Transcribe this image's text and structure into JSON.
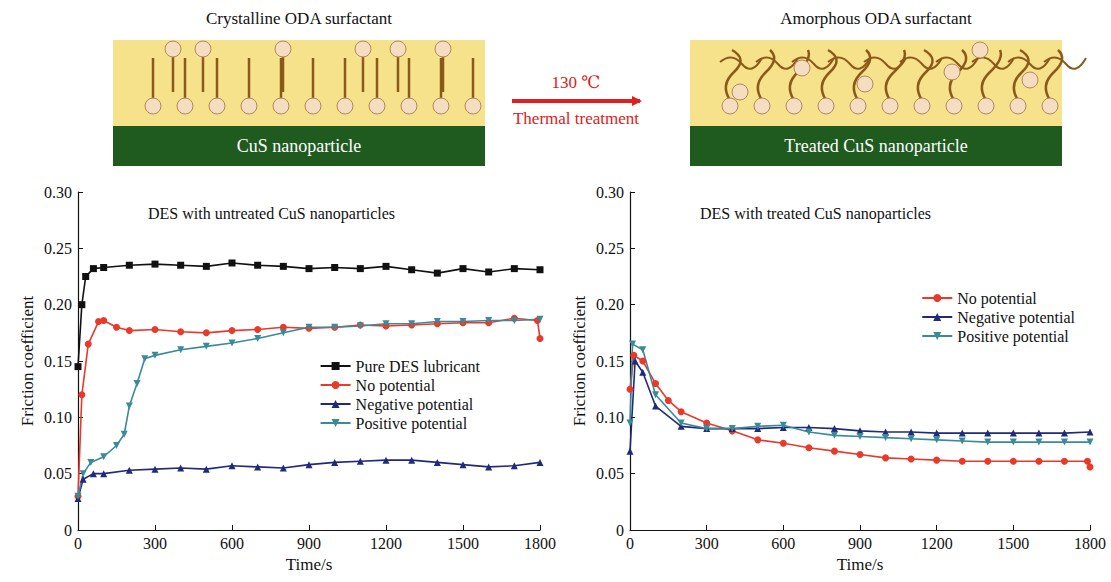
{
  "schematic": {
    "left": {
      "title": "Crystalline ODA surfactant",
      "base": "CuS nanoparticle"
    },
    "arrow": {
      "top": "130 ℃",
      "bottom": "Thermal treatment"
    },
    "right": {
      "title": "Amorphous ODA surfactant",
      "base": "Treated CuS nanoparticle"
    }
  },
  "chart_data": [
    {
      "type": "line",
      "title": "DES with untreated CuS nanoparticles",
      "x_label": "Time/s",
      "y_label": "Friction coefficient",
      "xlim": [
        0,
        1800
      ],
      "xticks": [
        0,
        300,
        600,
        900,
        1200,
        1500,
        1800
      ],
      "ylim": [
        0,
        0.3
      ],
      "yticks": [
        0,
        0.05,
        {
          "value": 0.1,
          "label": "0.10"
        },
        0.15,
        {
          "value": 0.2,
          "label": "0.20"
        },
        0.25,
        {
          "value": 0.3,
          "label": "0.30"
        }
      ],
      "grid": false,
      "legend": "center right",
      "series": [
        {
          "name": "Pure DES lubricant",
          "color": "#111111",
          "marker": "square",
          "x": [
            0,
            15,
            30,
            60,
            100,
            200,
            300,
            400,
            500,
            600,
            700,
            800,
            900,
            1000,
            1100,
            1200,
            1300,
            1400,
            1500,
            1600,
            1700,
            1800
          ],
          "values": [
            0.145,
            0.2,
            0.225,
            0.232,
            0.233,
            0.235,
            0.236,
            0.235,
            0.234,
            0.237,
            0.235,
            0.234,
            0.232,
            0.233,
            0.232,
            0.234,
            0.231,
            0.228,
            0.232,
            0.229,
            0.232,
            0.231
          ]
        },
        {
          "name": "No potential",
          "color": "#e8392b",
          "marker": "circle",
          "x": [
            0,
            15,
            40,
            80,
            100,
            150,
            200,
            300,
            400,
            500,
            600,
            700,
            800,
            900,
            1000,
            1100,
            1200,
            1300,
            1400,
            1500,
            1600,
            1700,
            1790,
            1800
          ],
          "values": [
            0.03,
            0.12,
            0.165,
            0.185,
            0.186,
            0.18,
            0.177,
            0.178,
            0.176,
            0.175,
            0.177,
            0.178,
            0.18,
            0.179,
            0.18,
            0.182,
            0.181,
            0.182,
            0.183,
            0.184,
            0.184,
            0.188,
            0.186,
            0.17
          ]
        },
        {
          "name": "Negative potential",
          "color": "#1f2a7a",
          "marker": "triangle",
          "x": [
            0,
            20,
            60,
            100,
            200,
            300,
            400,
            500,
            600,
            700,
            800,
            900,
            1000,
            1100,
            1200,
            1300,
            1400,
            1500,
            1600,
            1700,
            1800
          ],
          "values": [
            0.028,
            0.045,
            0.05,
            0.05,
            0.053,
            0.054,
            0.055,
            0.054,
            0.057,
            0.056,
            0.055,
            0.058,
            0.06,
            0.061,
            0.062,
            0.062,
            0.06,
            0.058,
            0.056,
            0.057,
            0.06
          ]
        },
        {
          "name": "Positive potential",
          "color": "#3a8a9a",
          "marker": "triangle-down",
          "x": [
            0,
            20,
            50,
            100,
            150,
            180,
            200,
            230,
            260,
            300,
            400,
            500,
            600,
            700,
            800,
            900,
            1000,
            1100,
            1200,
            1300,
            1400,
            1500,
            1600,
            1700,
            1800
          ],
          "values": [
            0.03,
            0.05,
            0.06,
            0.065,
            0.075,
            0.085,
            0.11,
            0.13,
            0.152,
            0.155,
            0.16,
            0.163,
            0.166,
            0.17,
            0.175,
            0.18,
            0.18,
            0.181,
            0.183,
            0.183,
            0.185,
            0.185,
            0.186,
            0.186,
            0.187
          ]
        }
      ]
    },
    {
      "type": "line",
      "title": "DES with treated CuS nanoparticles",
      "x_label": "Time/s",
      "y_label": "Friction coefficient",
      "xlim": [
        0,
        1800
      ],
      "xticks": [
        0,
        300,
        600,
        900,
        1200,
        1500,
        1800
      ],
      "ylim": [
        0,
        0.3
      ],
      "yticks": [
        0,
        0.05,
        {
          "value": 0.1,
          "label": "0.10"
        },
        0.15,
        {
          "value": 0.2,
          "label": "0.20"
        },
        0.25,
        {
          "value": 0.3,
          "label": "0.30"
        }
      ],
      "grid": false,
      "legend": "upper right",
      "series": [
        {
          "name": "No potential",
          "color": "#e8392b",
          "marker": "circle",
          "x": [
            0,
            15,
            50,
            100,
            150,
            200,
            300,
            400,
            500,
            600,
            700,
            800,
            900,
            1000,
            1100,
            1200,
            1300,
            1400,
            1500,
            1600,
            1700,
            1790,
            1800
          ],
          "values": [
            0.125,
            0.155,
            0.15,
            0.13,
            0.115,
            0.105,
            0.095,
            0.088,
            0.08,
            0.077,
            0.073,
            0.07,
            0.067,
            0.064,
            0.063,
            0.062,
            0.061,
            0.061,
            0.061,
            0.061,
            0.061,
            0.061,
            0.056
          ]
        },
        {
          "name": "Negative potential",
          "color": "#1f2a7a",
          "marker": "triangle",
          "x": [
            0,
            20,
            50,
            100,
            200,
            300,
            400,
            500,
            600,
            700,
            800,
            900,
            1000,
            1100,
            1200,
            1300,
            1400,
            1500,
            1600,
            1700,
            1800
          ],
          "values": [
            0.07,
            0.15,
            0.14,
            0.11,
            0.092,
            0.09,
            0.09,
            0.09,
            0.091,
            0.091,
            0.09,
            0.088,
            0.087,
            0.087,
            0.086,
            0.086,
            0.086,
            0.086,
            0.086,
            0.086,
            0.087
          ]
        },
        {
          "name": "Positive potential",
          "color": "#3a8a9a",
          "marker": "triangle-down",
          "x": [
            0,
            10,
            50,
            100,
            200,
            300,
            400,
            500,
            600,
            700,
            800,
            900,
            1000,
            1100,
            1200,
            1300,
            1400,
            1500,
            1600,
            1700,
            1800
          ],
          "values": [
            0.095,
            0.165,
            0.16,
            0.12,
            0.095,
            0.09,
            0.09,
            0.092,
            0.093,
            0.087,
            0.084,
            0.083,
            0.082,
            0.081,
            0.08,
            0.079,
            0.078,
            0.078,
            0.078,
            0.078,
            0.078
          ]
        }
      ]
    }
  ]
}
